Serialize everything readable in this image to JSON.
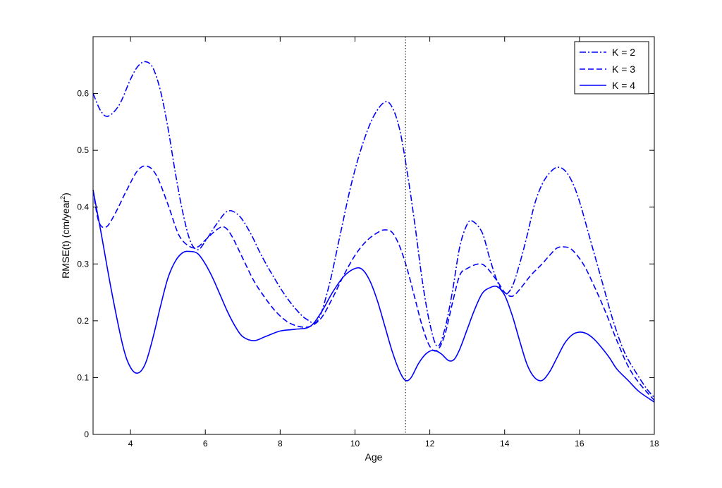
{
  "chart_data": {
    "type": "line",
    "title": "",
    "xlabel": "Age",
    "ylabel": "RMSE(t) (cm/year",
    "ylabel_sup": "2",
    "ylabel_close": ")",
    "xlim": [
      3,
      18
    ],
    "ylim": [
      0,
      0.7
    ],
    "xticks": [
      4,
      6,
      8,
      10,
      12,
      14,
      16,
      18
    ],
    "yticks": [
      0,
      0.1,
      0.2,
      0.3,
      0.4,
      0.5,
      0.6
    ],
    "xtick_labels": [
      "4",
      "6",
      "8",
      "10",
      "12",
      "14",
      "16",
      "18"
    ],
    "ytick_labels": [
      "0",
      "0.1",
      "0.2",
      "0.3",
      "0.4",
      "0.5",
      "0.6"
    ],
    "grid": false,
    "legend_position": "top-right",
    "vline_x": 11.35,
    "color": "#0000ff",
    "series": [
      {
        "name": "K = 2",
        "style": "dashdot",
        "x": [
          3.0,
          3.2,
          3.4,
          3.7,
          4.0,
          4.2,
          4.4,
          4.6,
          4.8,
          5.0,
          5.2,
          5.4,
          5.6,
          5.8,
          6.0,
          6.3,
          6.6,
          6.9,
          7.2,
          7.5,
          7.8,
          8.1,
          8.4,
          8.7,
          9.0,
          9.3,
          9.6,
          9.9,
          10.2,
          10.5,
          10.8,
          11.0,
          11.2,
          11.4,
          11.6,
          11.8,
          12.0,
          12.2,
          12.4,
          12.6,
          12.8,
          13.0,
          13.15,
          13.4,
          13.6,
          13.8,
          14.0,
          14.2,
          14.4,
          14.6,
          14.8,
          15.0,
          15.2,
          15.4,
          15.6,
          15.8,
          16.0,
          16.3,
          16.6,
          16.9,
          17.2,
          17.5,
          17.8,
          18.0
        ],
        "y": [
          0.6,
          0.57,
          0.56,
          0.58,
          0.625,
          0.648,
          0.656,
          0.645,
          0.605,
          0.54,
          0.46,
          0.39,
          0.34,
          0.325,
          0.34,
          0.37,
          0.393,
          0.385,
          0.355,
          0.315,
          0.28,
          0.248,
          0.222,
          0.203,
          0.2,
          0.26,
          0.35,
          0.44,
          0.51,
          0.56,
          0.585,
          0.575,
          0.535,
          0.46,
          0.37,
          0.27,
          0.195,
          0.155,
          0.185,
          0.25,
          0.33,
          0.37,
          0.375,
          0.355,
          0.31,
          0.27,
          0.247,
          0.26,
          0.3,
          0.35,
          0.405,
          0.44,
          0.46,
          0.47,
          0.465,
          0.445,
          0.41,
          0.34,
          0.27,
          0.2,
          0.145,
          0.11,
          0.08,
          0.065
        ]
      },
      {
        "name": "K = 3",
        "style": "dashed",
        "x": [
          3.0,
          3.15,
          3.35,
          3.6,
          3.9,
          4.2,
          4.45,
          4.7,
          5.0,
          5.3,
          5.6,
          5.8,
          6.0,
          6.3,
          6.5,
          6.7,
          7.0,
          7.3,
          7.6,
          7.9,
          8.2,
          8.5,
          8.8,
          9.1,
          9.4,
          9.7,
          10.0,
          10.3,
          10.6,
          10.8,
          11.0,
          11.2,
          11.4,
          11.6,
          11.8,
          12.0,
          12.2,
          12.4,
          12.6,
          12.8,
          13.0,
          13.3,
          13.5,
          13.8,
          14.0,
          14.2,
          14.4,
          14.7,
          15.0,
          15.2,
          15.4,
          15.6,
          15.8,
          16.1,
          16.4,
          16.7,
          17.0,
          17.3,
          17.6,
          18.0
        ],
        "y": [
          0.43,
          0.375,
          0.365,
          0.39,
          0.43,
          0.465,
          0.472,
          0.455,
          0.405,
          0.35,
          0.33,
          0.33,
          0.342,
          0.36,
          0.365,
          0.35,
          0.31,
          0.27,
          0.24,
          0.215,
          0.198,
          0.19,
          0.19,
          0.205,
          0.24,
          0.28,
          0.315,
          0.34,
          0.355,
          0.36,
          0.355,
          0.33,
          0.29,
          0.24,
          0.19,
          0.155,
          0.148,
          0.175,
          0.23,
          0.28,
          0.292,
          0.3,
          0.295,
          0.27,
          0.25,
          0.243,
          0.255,
          0.28,
          0.3,
          0.315,
          0.328,
          0.33,
          0.325,
          0.3,
          0.26,
          0.215,
          0.165,
          0.12,
          0.09,
          0.06
        ]
      },
      {
        "name": "K = 4",
        "style": "solid",
        "x": [
          3.0,
          3.2,
          3.5,
          3.8,
          4.0,
          4.2,
          4.4,
          4.6,
          4.8,
          5.0,
          5.2,
          5.4,
          5.6,
          5.8,
          6.0,
          6.2,
          6.4,
          6.6,
          6.8,
          7.0,
          7.3,
          7.6,
          8.0,
          8.4,
          8.8,
          9.1,
          9.4,
          9.7,
          10.0,
          10.2,
          10.4,
          10.6,
          10.8,
          11.0,
          11.2,
          11.35,
          11.5,
          11.7,
          11.9,
          12.1,
          12.3,
          12.5,
          12.65,
          12.8,
          13.0,
          13.2,
          13.4,
          13.6,
          13.8,
          14.0,
          14.2,
          14.4,
          14.6,
          14.8,
          15.0,
          15.2,
          15.4,
          15.6,
          15.8,
          16.0,
          16.2,
          16.4,
          16.6,
          16.8,
          17.0,
          17.3,
          17.6,
          18.0
        ],
        "y": [
          0.43,
          0.36,
          0.25,
          0.155,
          0.118,
          0.108,
          0.125,
          0.17,
          0.225,
          0.275,
          0.305,
          0.32,
          0.322,
          0.318,
          0.3,
          0.275,
          0.245,
          0.215,
          0.19,
          0.172,
          0.165,
          0.172,
          0.182,
          0.185,
          0.19,
          0.215,
          0.25,
          0.278,
          0.292,
          0.29,
          0.27,
          0.235,
          0.19,
          0.145,
          0.11,
          0.095,
          0.1,
          0.125,
          0.142,
          0.148,
          0.142,
          0.13,
          0.132,
          0.15,
          0.185,
          0.22,
          0.248,
          0.258,
          0.26,
          0.245,
          0.21,
          0.165,
          0.123,
          0.1,
          0.095,
          0.11,
          0.135,
          0.16,
          0.175,
          0.18,
          0.177,
          0.167,
          0.152,
          0.135,
          0.115,
          0.095,
          0.075,
          0.057
        ]
      }
    ]
  }
}
